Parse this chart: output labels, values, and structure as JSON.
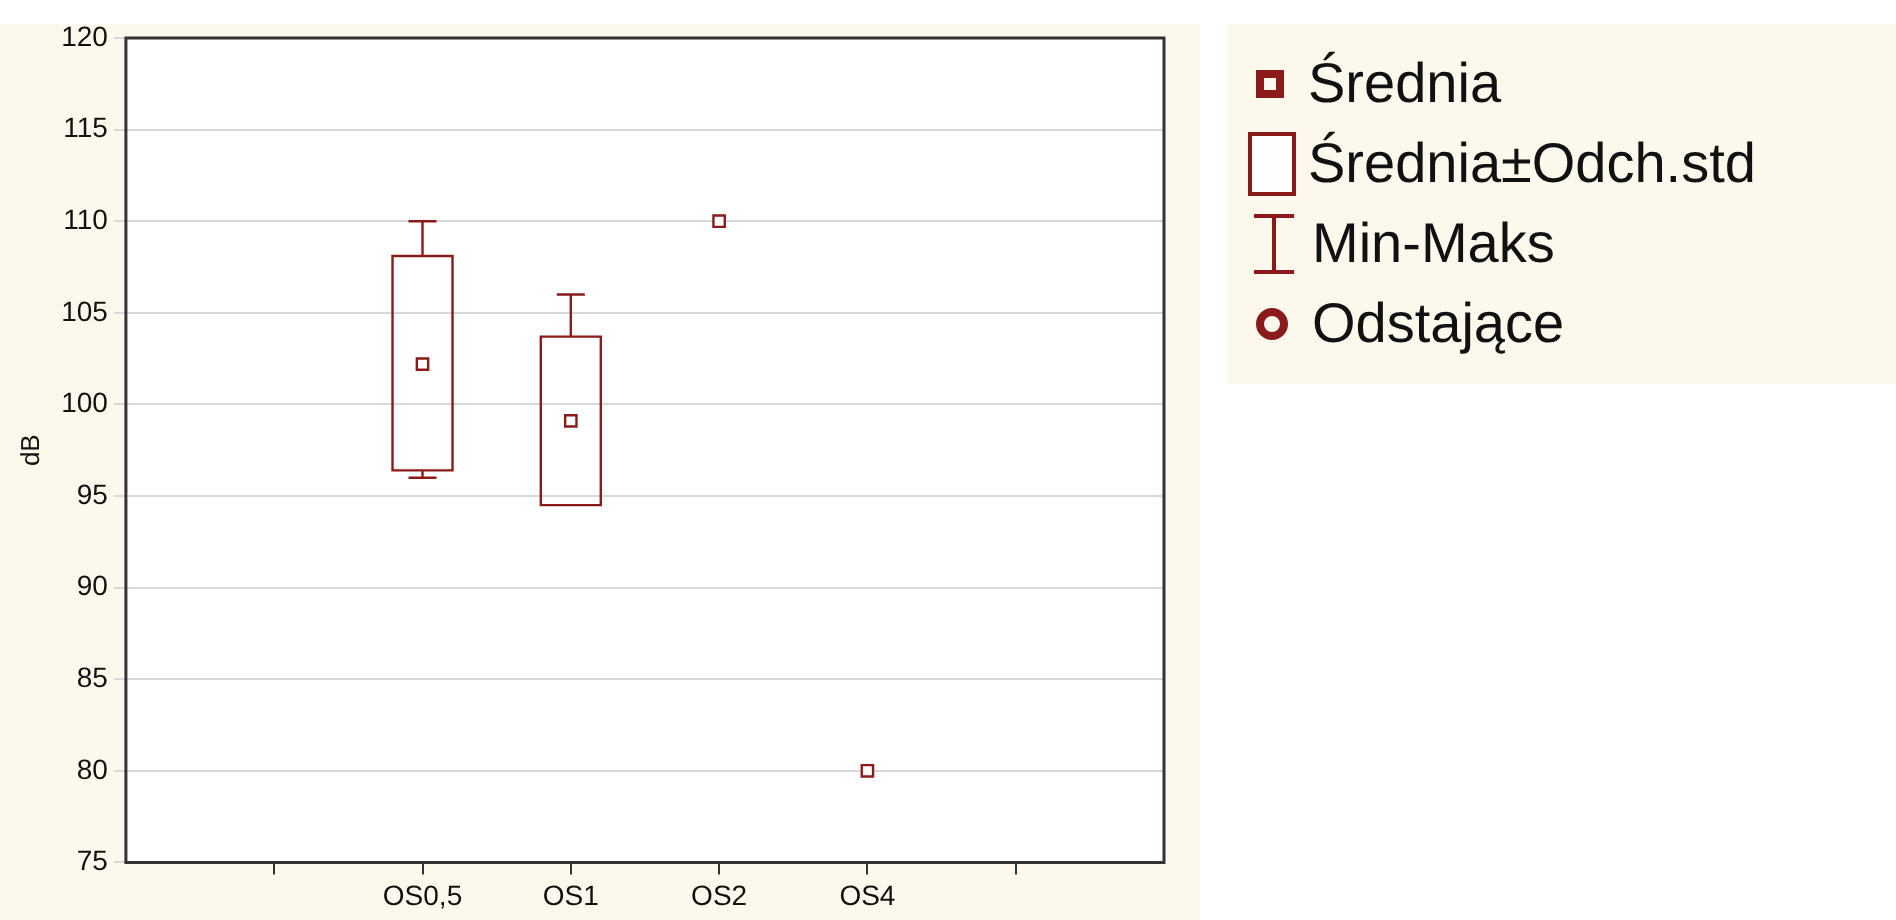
{
  "chart_data": {
    "type": "box",
    "ylabel": "dB",
    "categories": [
      null,
      "OS0,5",
      "OS1",
      "OS2",
      "OS4",
      null
    ],
    "boxes": [
      null,
      {
        "low": 96,
        "q1": 96.4,
        "median": 102.2,
        "q3": 108.1,
        "high": 110
      },
      {
        "low": 94.5,
        "q1": 94.5,
        "median": 99.1,
        "q3": 103.7,
        "high": 106
      },
      null,
      null,
      null
    ],
    "series": [
      {
        "type": "scatter",
        "x": [
          "OS2",
          "OS4"
        ],
        "values": [
          110,
          80
        ],
        "color": "#8b1a1a",
        "marker": "square"
      }
    ],
    "color": "#8b1a1a",
    "ylim": [
      75,
      120
    ],
    "yticks": [
      75,
      80,
      85,
      90,
      95,
      100,
      105,
      110,
      115,
      120
    ],
    "grid": "y",
    "annotations": [
      "Średnia",
      "Średnia±Odch.std",
      "Min-Maks",
      "Odstające"
    ]
  }
}
